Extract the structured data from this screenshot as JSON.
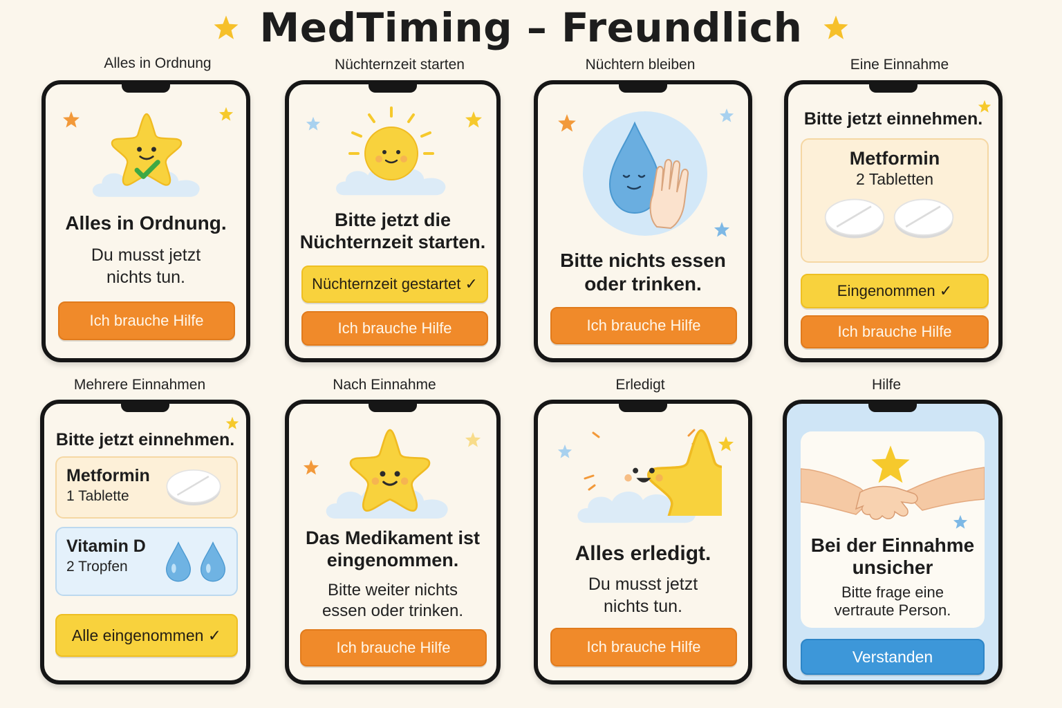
{
  "app": {
    "title": "MedTiming – Freundlich"
  },
  "colors": {
    "orange": "#f08a2a",
    "yellow": "#f8d23d",
    "blue": "#3d97d9",
    "star": "#f6c92c"
  },
  "screens": [
    {
      "label": "Alles in Ordnung",
      "headline": "Alles in Ordnung.",
      "body": [
        "Du musst jetzt",
        "nichts tun."
      ],
      "help_button": "Ich brauche Hilfe",
      "illustration": "star-check"
    },
    {
      "label": "Nüchternzeit starten",
      "headline": [
        "Bitte jetzt die",
        "Nüchternzeit starten."
      ],
      "confirm_button": "Nüchternzeit gestartet ✓",
      "help_button": "Ich brauche Hilfe",
      "illustration": "sun-cloud"
    },
    {
      "label": "Nüchtern bleiben",
      "headline": [
        "Bitte nichts essen",
        "oder trinken."
      ],
      "help_button": "Ich brauche Hilfe",
      "illustration": "drop-hand"
    },
    {
      "label": "Eine Einnahme",
      "instruction": "Bitte jetzt einnehmen.",
      "medication": {
        "name": "Metformin",
        "dose": "2 Tabletten",
        "icon": "pill-icon",
        "count": 2
      },
      "confirm_button": "Eingenommen ✓",
      "help_button": "Ich brauche Hilfe"
    },
    {
      "label": "Mehrere Einnahmen",
      "instruction": "Bitte jetzt einnehmen.",
      "medications": [
        {
          "name": "Metformin",
          "dose": "1 Tablette",
          "icon": "pill-icon",
          "count": 1
        },
        {
          "name": "Vitamin D",
          "dose": "2 Tropfen",
          "icon": "drop-icon",
          "count": 2
        }
      ],
      "confirm_button": "Alle eingenommen ✓"
    },
    {
      "label": "Nach Einnahme",
      "headline": [
        "Das Medikament ist",
        "eingenommen."
      ],
      "body": [
        "Bitte weiter nichts",
        "essen oder trinken."
      ],
      "help_button": "Ich brauche Hilfe",
      "illustration": "star-smile"
    },
    {
      "label": "Erledigt",
      "headline": "Alles erledigt.",
      "body": [
        "Du musst jetzt",
        "nichts tun."
      ],
      "help_button": "Ich brauche Hilfe",
      "illustration": "star-celebrate"
    },
    {
      "label": "Hilfe",
      "headline": [
        "Bei der Einnahme",
        "unsicher"
      ],
      "body": [
        "Bitte frage eine",
        "vertraute Person."
      ],
      "ok_button": "Verstanden",
      "illustration": "handshake-star"
    }
  ]
}
